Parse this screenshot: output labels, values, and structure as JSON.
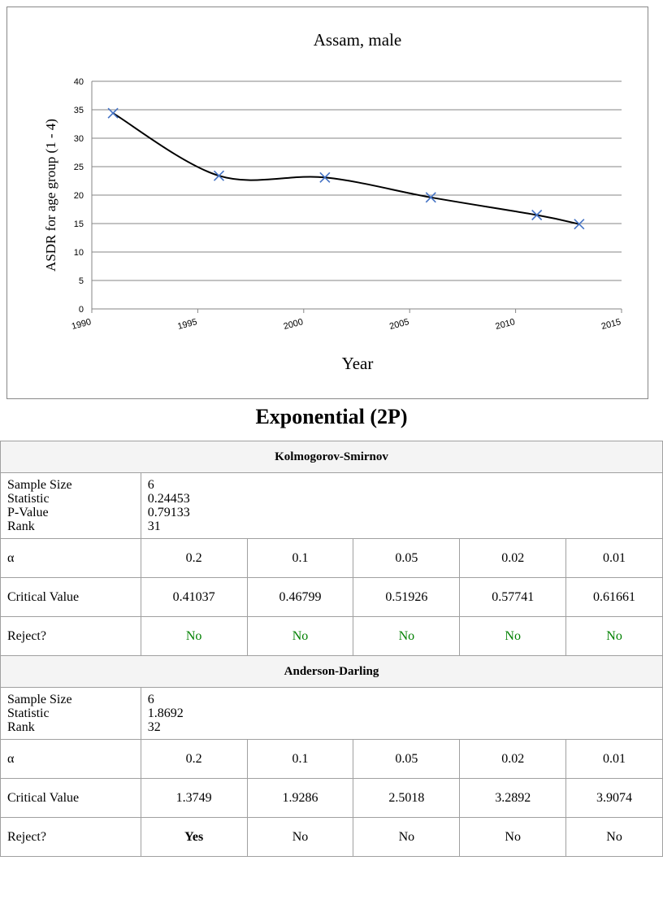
{
  "chart_data": {
    "type": "scatter",
    "title": "Assam, male",
    "x_label": "Year",
    "y_label": "ASDR for age group  (1 - 4)",
    "x": [
      1991,
      1996,
      2001,
      2006,
      2011,
      2013
    ],
    "series": [
      {
        "color": "#4472c4",
        "line_color": "#000000",
        "smooth": true,
        "values": [
          34.4,
          23.4,
          23.1,
          19.6,
          16.5,
          14.9
        ]
      }
    ],
    "xlim": [
      1990,
      2015
    ],
    "xticks": [
      1990,
      1995,
      2000,
      2005,
      2010,
      2015
    ],
    "ylim": [
      0,
      40
    ],
    "yticks": [
      0,
      5,
      10,
      15,
      20,
      25,
      30,
      35,
      40
    ],
    "grid": true
  },
  "heading": "Exponential (2P)",
  "tests": [
    {
      "name": "Kolmogorov-Smirnov",
      "stats": [
        [
          "Sample Size",
          "6"
        ],
        [
          "Statistic",
          "0.24453"
        ],
        [
          "P-Value",
          "0.79133"
        ],
        [
          "Rank",
          "31"
        ]
      ],
      "alpha_label": "α",
      "alphas": [
        "0.2",
        "0.1",
        "0.05",
        "0.02",
        "0.01"
      ],
      "critical_label": "Critical Value",
      "critical": [
        "0.41037",
        "0.46799",
        "0.51926",
        "0.57741",
        "0.61661"
      ],
      "reject_label": "Reject?",
      "reject": [
        "No",
        "No",
        "No",
        "No",
        "No"
      ],
      "reject_color": "#008000",
      "reject_bold": [
        false,
        false,
        false,
        false,
        false
      ]
    },
    {
      "name": "Anderson-Darling",
      "stats": [
        [
          "Sample Size",
          "6"
        ],
        [
          "Statistic",
          "1.8692"
        ],
        [
          "Rank",
          "32"
        ]
      ],
      "alpha_label": "α",
      "alphas": [
        "0.2",
        "0.1",
        "0.05",
        "0.02",
        "0.01"
      ],
      "critical_label": "Critical Value",
      "critical": [
        "1.3749",
        "1.9286",
        "2.5018",
        "3.2892",
        "3.9074"
      ],
      "reject_label": "Reject?",
      "reject": [
        "Yes",
        "No",
        "No",
        "No",
        "No"
      ],
      "reject_color": "#000000",
      "reject_bold": [
        true,
        false,
        false,
        false,
        false
      ]
    }
  ]
}
